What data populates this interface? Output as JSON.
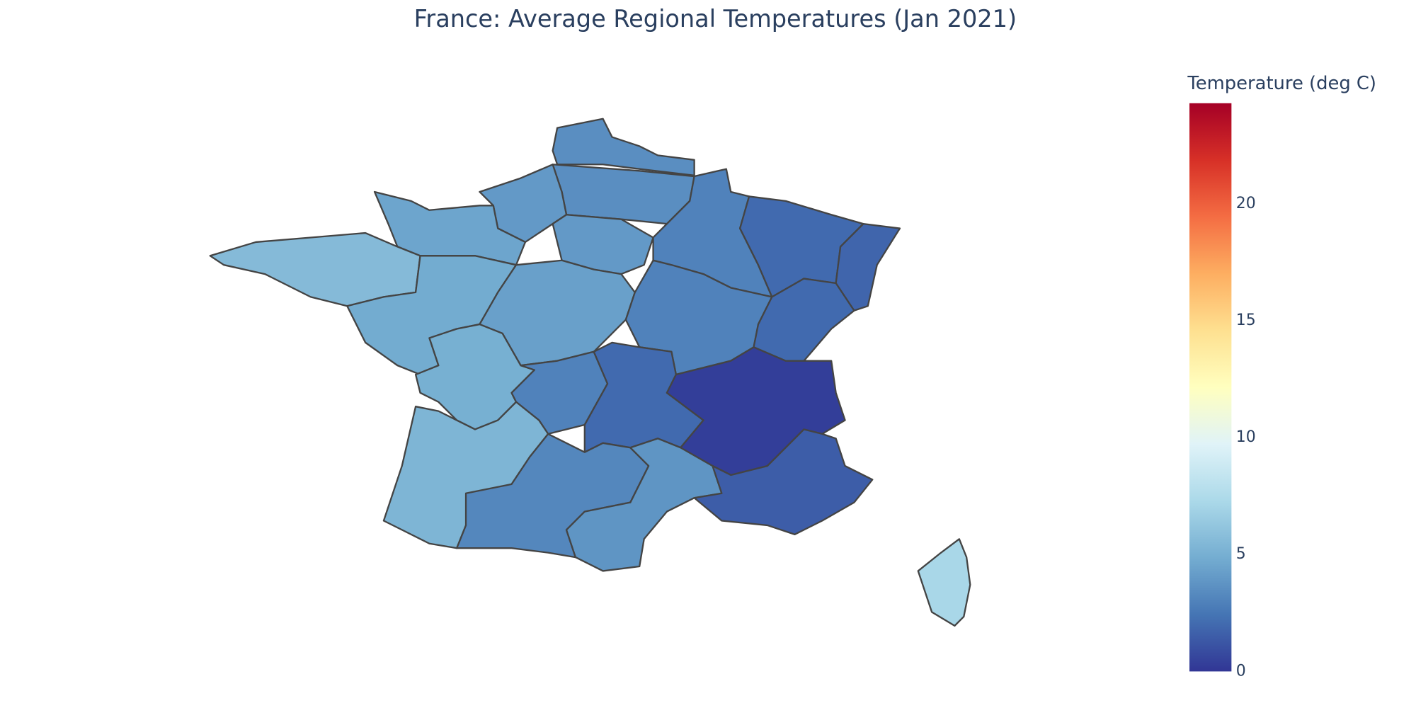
{
  "chart_data": {
    "type": "choropleth",
    "title": "France: Average Regional Temperatures (Jan 2021)",
    "colorbar_title": "Temperature (deg C)",
    "values": [
      3.5,
      3.5,
      4,
      4.5,
      5.6,
      4.8,
      4,
      4.3,
      3,
      2,
      1.8,
      3,
      2,
      5,
      3,
      2,
      0.3,
      5.3,
      3.2,
      3.8,
      1.5,
      7.2
    ],
    "clim": [
      0,
      24.3
    ],
    "cticks": [
      0,
      5,
      10,
      15,
      20
    ],
    "colorscale": [
      [
        0,
        "#313695"
      ],
      [
        0.1,
        "#4575b4"
      ],
      [
        0.2,
        "#74add1"
      ],
      [
        0.3,
        "#abd9e9"
      ],
      [
        0.4,
        "#e0f3f8"
      ],
      [
        0.5,
        "#ffffbf"
      ],
      [
        0.6,
        "#fee090"
      ],
      [
        0.7,
        "#fdae61"
      ],
      [
        0.8,
        "#f46d43"
      ],
      [
        0.9,
        "#d73027"
      ],
      [
        1,
        "#a50026"
      ]
    ]
  }
}
